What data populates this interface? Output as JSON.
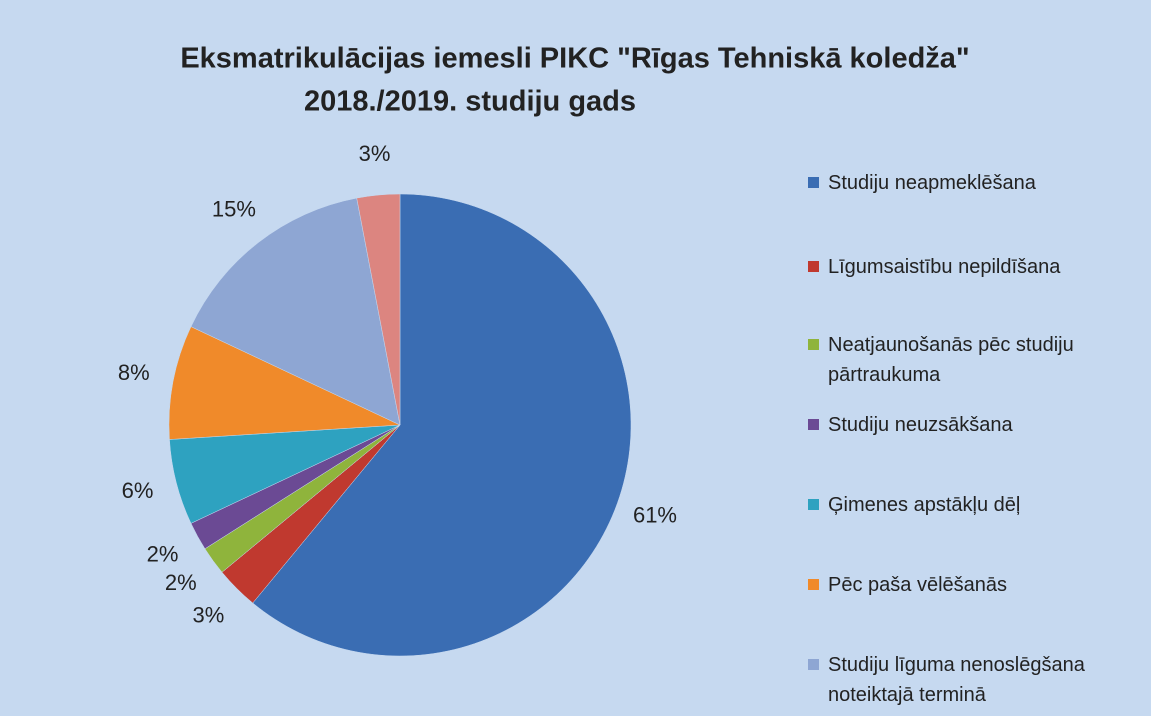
{
  "chart_data": {
    "type": "pie",
    "title": "Eksmatrikulācijas iemesli PIKC \"Rīgas Tehniskā koledža\"",
    "subtitle": "2018./2019. studiju gads",
    "categories": [
      "Studiju neapmeklēšana",
      "Līgumsaistību nepildīšana",
      "Neatjaunošanās pēc studiju pārtraukuma",
      "Studiju neuzsākšana",
      "Ģimenes apstākļu dēļ",
      "Pēc paša vēlēšanās",
      "Studiju līguma nenoslēgšana noteiktajā terminā",
      null
    ],
    "values": [
      61,
      3,
      2,
      2,
      6,
      8,
      15,
      3
    ],
    "value_labels": [
      "61%",
      "3%",
      "2%",
      "2%",
      "6%",
      "8%",
      "15%",
      "3%"
    ],
    "colors": [
      "#3a6db3",
      "#c0392f",
      "#8fb43c",
      "#6b4a94",
      "#2ea2c0",
      "#f08a2a",
      "#8ea6d3",
      "#dc8580"
    ],
    "legend": "right"
  }
}
